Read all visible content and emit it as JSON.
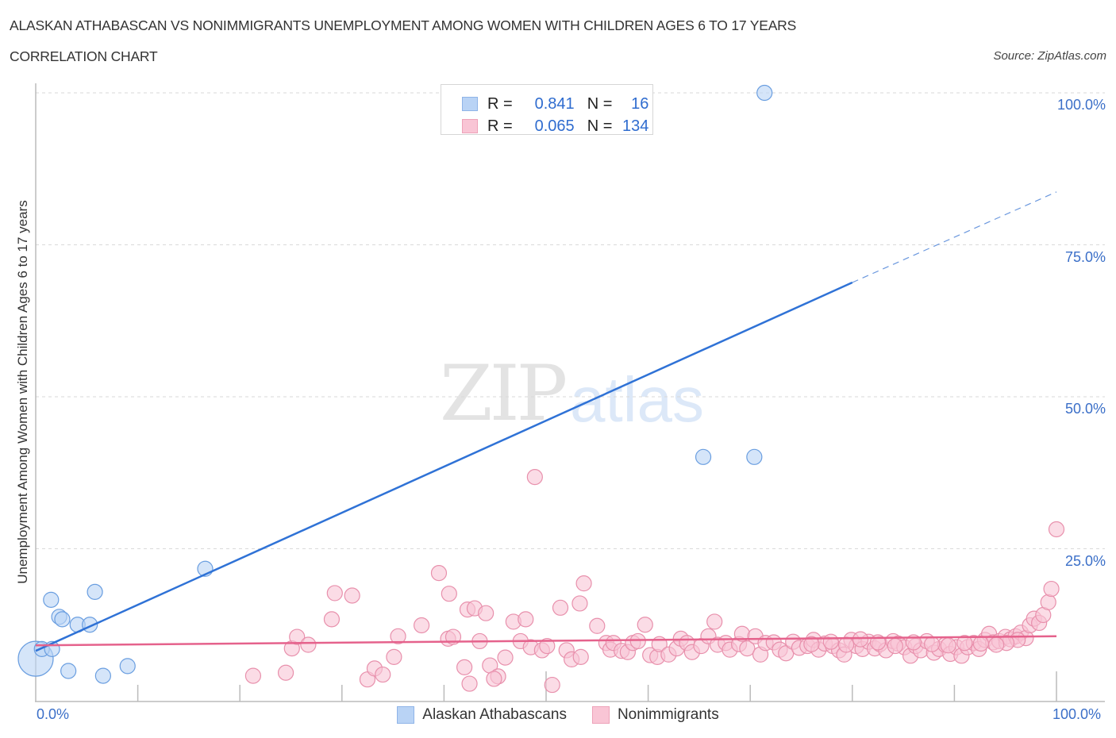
{
  "header": {
    "title": "ALASKAN ATHABASCAN VS NONIMMIGRANTS UNEMPLOYMENT AMONG WOMEN WITH CHILDREN AGES 6 TO 17 YEARS",
    "subtitle": "CORRELATION CHART",
    "source": "Source: ZipAtlas.com"
  },
  "watermark": {
    "zip": "ZIP",
    "atlas": "atlas"
  },
  "stats": {
    "rows": [
      {
        "r_label": "R =",
        "r_value": "0.841",
        "n_label": "N =",
        "n_value": "16",
        "color": "#b9d3f5"
      },
      {
        "r_label": "R =",
        "r_value": "0.065",
        "n_label": "N =",
        "n_value": "134",
        "color": "#f9c5d5"
      }
    ]
  },
  "axes": {
    "ylabel": "Unemployment Among Women with Children Ages 6 to 17 years",
    "yticks": [
      "100.0%",
      "75.0%",
      "50.0%",
      "25.0%"
    ],
    "xticks": [
      "0.0%",
      "100.0%"
    ]
  },
  "legend": {
    "items": [
      {
        "label": "Alaskan Athabascans",
        "color": "#b9d3f5"
      },
      {
        "label": "Nonimmigrants",
        "color": "#f9c5d5"
      }
    ]
  },
  "chart_data": {
    "type": "scatter",
    "title": "ALASKAN ATHABASCAN VS NONIMMIGRANTS UNEMPLOYMENT AMONG WOMEN WITH CHILDREN AGES 6 TO 17 YEARS",
    "subtitle": "CORRELATION CHART",
    "xlabel": "",
    "ylabel": "Unemployment Among Women with Children Ages 6 to 17 years",
    "xlim": [
      0,
      100
    ],
    "ylim": [
      0,
      100
    ],
    "grid": "horizontal dashed",
    "legend_position": "bottom",
    "series": [
      {
        "name": "Alaskan Athabascans",
        "color": "#6a9ee0",
        "fill": "#b9d3f5",
        "R": 0.841,
        "N": 16,
        "trend": {
          "x0": 0,
          "y0": 8.2,
          "x1": 80,
          "y1": 68.8,
          "dashed_to": {
            "x": 100,
            "y": 83.7
          }
        },
        "points": [
          [
            0,
            6.9,
            22
          ],
          [
            0.6,
            8.5
          ],
          [
            1.6,
            8.5
          ],
          [
            1.5,
            16.6
          ],
          [
            2.3,
            13.8
          ],
          [
            2.6,
            13.4
          ],
          [
            4.1,
            12.5
          ],
          [
            5.3,
            12.5
          ],
          [
            5.8,
            17.9
          ],
          [
            3.2,
            4.9
          ],
          [
            6.6,
            4.1
          ],
          [
            9.0,
            5.7
          ],
          [
            16.6,
            21.7
          ],
          [
            65.4,
            40.1
          ],
          [
            70.4,
            40.1
          ],
          [
            71.4,
            100
          ]
        ]
      },
      {
        "name": "Nonimmigrants",
        "color": "#e890ac",
        "fill": "#f9c5d5",
        "R": 0.065,
        "N": 134,
        "trend": {
          "x0": 0,
          "y0": 9.1,
          "x1": 100,
          "y1": 10.6
        },
        "points": [
          [
            21.3,
            4.1
          ],
          [
            25.1,
            8.6
          ],
          [
            24.5,
            4.6
          ],
          [
            25.6,
            10.5
          ],
          [
            26.7,
            9.2
          ],
          [
            29.0,
            13.4
          ],
          [
            29.3,
            17.7
          ],
          [
            31.0,
            17.3
          ],
          [
            32.5,
            3.5
          ],
          [
            33.2,
            5.3
          ],
          [
            34.0,
            4.3
          ],
          [
            35.1,
            7.2
          ],
          [
            35.5,
            10.6
          ],
          [
            37.8,
            12.4
          ],
          [
            39.5,
            21.0
          ],
          [
            40.4,
            10.2
          ],
          [
            40.5,
            17.6
          ],
          [
            40.9,
            10.5
          ],
          [
            42.0,
            5.5
          ],
          [
            42.5,
            2.8
          ],
          [
            42.3,
            15.0
          ],
          [
            43.0,
            15.2
          ],
          [
            43.5,
            9.8
          ],
          [
            44.1,
            14.4
          ],
          [
            44.5,
            5.8
          ],
          [
            45.3,
            4.0
          ],
          [
            44.9,
            3.6
          ],
          [
            46.0,
            7.1
          ],
          [
            46.8,
            13.0
          ],
          [
            47.5,
            9.8
          ],
          [
            48.0,
            13.4
          ],
          [
            48.9,
            36.8
          ],
          [
            48.5,
            8.8
          ],
          [
            49.6,
            8.3
          ],
          [
            50.1,
            9.0
          ],
          [
            50.6,
            2.6
          ],
          [
            51.4,
            15.3
          ],
          [
            52.0,
            8.3
          ],
          [
            52.5,
            6.8
          ],
          [
            53.3,
            16.0
          ],
          [
            53.7,
            19.3
          ],
          [
            53.4,
            7.2
          ],
          [
            55.0,
            12.3
          ],
          [
            55.9,
            9.5
          ],
          [
            56.3,
            8.4
          ],
          [
            56.6,
            9.5
          ],
          [
            57.4,
            8.2
          ],
          [
            58.0,
            8.0
          ],
          [
            58.5,
            9.5
          ],
          [
            59.0,
            9.8
          ],
          [
            59.7,
            12.5
          ],
          [
            60.2,
            7.5
          ],
          [
            60.9,
            7.2
          ],
          [
            61.1,
            9.3
          ],
          [
            62.0,
            7.6
          ],
          [
            62.8,
            8.6
          ],
          [
            63.2,
            10.2
          ],
          [
            63.8,
            9.5
          ],
          [
            64.3,
            8.0
          ],
          [
            65.2,
            9.0
          ],
          [
            65.9,
            10.6
          ],
          [
            66.5,
            13.0
          ],
          [
            66.8,
            9.2
          ],
          [
            67.6,
            9.5
          ],
          [
            68.0,
            8.4
          ],
          [
            68.9,
            9.3
          ],
          [
            69.2,
            11.0
          ],
          [
            69.7,
            8.6
          ],
          [
            70.5,
            10.6
          ],
          [
            71.0,
            7.6
          ],
          [
            71.5,
            9.5
          ],
          [
            72.3,
            9.6
          ],
          [
            72.9,
            8.4
          ],
          [
            73.5,
            7.8
          ],
          [
            74.2,
            9.7
          ],
          [
            74.8,
            8.7
          ],
          [
            75.6,
            9.0
          ],
          [
            76.2,
            10.0
          ],
          [
            76.7,
            8.4
          ],
          [
            77.3,
            9.4
          ],
          [
            78.1,
            9.0
          ],
          [
            78.7,
            8.3
          ],
          [
            79.2,
            7.6
          ],
          [
            79.9,
            10.0
          ],
          [
            80.4,
            9.0
          ],
          [
            81.0,
            8.5
          ],
          [
            81.6,
            9.7
          ],
          [
            82.2,
            8.6
          ],
          [
            82.7,
            9.3
          ],
          [
            83.3,
            8.3
          ],
          [
            84.0,
            9.8
          ],
          [
            84.5,
            9.4
          ],
          [
            85.1,
            8.8
          ],
          [
            85.7,
            7.4
          ],
          [
            86.2,
            9.0
          ],
          [
            86.7,
            8.3
          ],
          [
            87.3,
            9.8
          ],
          [
            88.0,
            7.9
          ],
          [
            88.5,
            8.5
          ],
          [
            89.1,
            9.2
          ],
          [
            89.6,
            7.7
          ],
          [
            90.2,
            8.8
          ],
          [
            90.7,
            7.4
          ],
          [
            91.3,
            8.8
          ],
          [
            91.9,
            9.5
          ],
          [
            92.4,
            8.5
          ],
          [
            93.0,
            10.0
          ],
          [
            93.4,
            11.0
          ],
          [
            93.8,
            9.6
          ],
          [
            94.4,
            9.8
          ],
          [
            95.0,
            10.5
          ],
          [
            95.5,
            10.1
          ],
          [
            96.0,
            10.6
          ],
          [
            96.5,
            11.2
          ],
          [
            97.0,
            10.3
          ],
          [
            97.4,
            12.4
          ],
          [
            97.8,
            13.5
          ],
          [
            98.3,
            12.8
          ],
          [
            98.7,
            14.1
          ],
          [
            99.2,
            16.2
          ],
          [
            99.5,
            18.4
          ],
          [
            100,
            28.2
          ],
          [
            96.2,
            10.0
          ],
          [
            95.1,
            9.5
          ],
          [
            94.1,
            9.2
          ],
          [
            92.6,
            9.4
          ],
          [
            91.0,
            9.5
          ],
          [
            89.4,
            9.1
          ],
          [
            87.8,
            9.3
          ],
          [
            86.0,
            9.6
          ],
          [
            84.2,
            9.0
          ],
          [
            82.5,
            9.6
          ],
          [
            80.8,
            10.1
          ],
          [
            79.4,
            9.2
          ],
          [
            77.9,
            9.7
          ],
          [
            76.0,
            9.3
          ]
        ]
      }
    ]
  }
}
